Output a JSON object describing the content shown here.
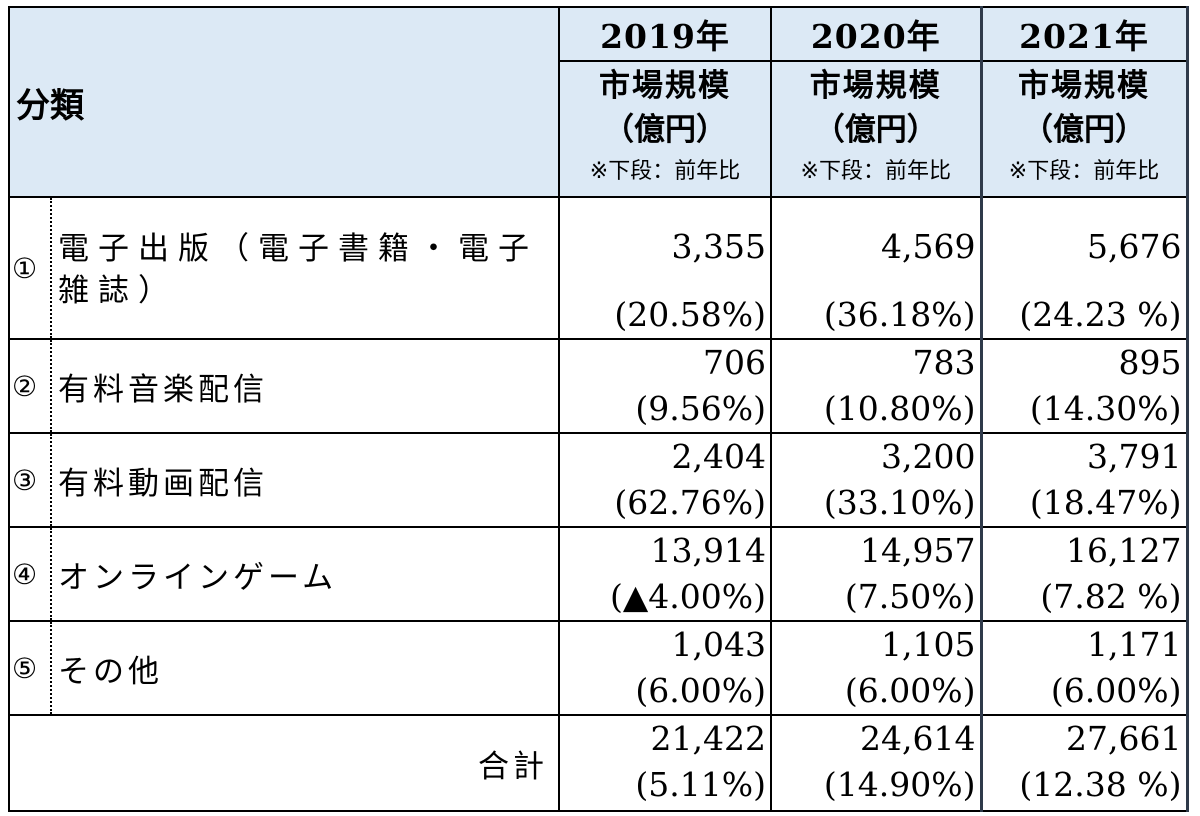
{
  "header": {
    "category_label": "分類",
    "years": [
      "2019年",
      "2020年",
      "2021年"
    ],
    "metric_line1": "市場規模",
    "metric_line2": "（億円）",
    "metric_note": "※下段：前年比"
  },
  "rows": [
    {
      "mark": "①",
      "name": "電子出版（電子書籍・電子雑誌）",
      "values": [
        "3,355",
        "4,569",
        "5,676"
      ],
      "ratios": [
        "(20.58%)",
        "(36.18%)",
        "(24.23 %)"
      ]
    },
    {
      "mark": "②",
      "name": "有料音楽配信",
      "values": [
        "706",
        "783",
        "895"
      ],
      "ratios": [
        "(9.56%)",
        "(10.80%)",
        "(14.30%)"
      ]
    },
    {
      "mark": "③",
      "name": "有料動画配信",
      "values": [
        "2,404",
        "3,200",
        "3,791"
      ],
      "ratios": [
        "(62.76%)",
        "(33.10%)",
        "(18.47%)"
      ]
    },
    {
      "mark": "④",
      "name": "オンラインゲーム",
      "values": [
        "13,914",
        "14,957",
        "16,127"
      ],
      "ratios": [
        "(▲4.00%)",
        "(7.50%)",
        "(7.82 %)"
      ]
    },
    {
      "mark": "⑤",
      "name": "その他",
      "values": [
        "1,043",
        "1,105",
        "1,171"
      ],
      "ratios": [
        "(6.00%)",
        "(6.00%)",
        "(6.00%)"
      ]
    }
  ],
  "total": {
    "label": "合計",
    "values": [
      "21,422",
      "24,614",
      "27,661"
    ],
    "ratios": [
      "(5.11%)",
      "(14.90%)",
      "(12.38 %)"
    ]
  }
}
